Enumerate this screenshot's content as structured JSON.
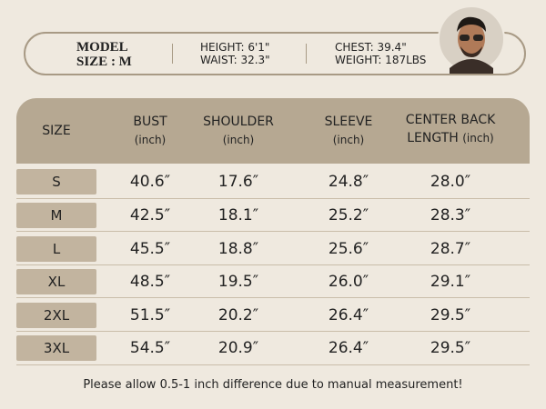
{
  "model": {
    "label": "MODEL",
    "size": "SIZE : M",
    "height": "HEIGHT: 6'1\"",
    "waist": "WAIST: 32.3\"",
    "chest": "CHEST: 39.4\"",
    "weight": "WEIGHT: 187LBS"
  },
  "table": {
    "header": [
      {
        "title": "SIZE"
      },
      {
        "title": "BUST",
        "unit": "(inch)"
      },
      {
        "title": "SHOULDER",
        "unit": "(inch)"
      },
      {
        "title": "SLEEVE",
        "unit": "(inch)"
      },
      {
        "title": "CENTER BACK LENGTH",
        "unit": "(inch)"
      }
    ],
    "rows": [
      [
        "S",
        "40.6″",
        "17.6″",
        "24.8″",
        "28.0″"
      ],
      [
        "M",
        "42.5″",
        "18.1″",
        "25.2″",
        "28.3″"
      ],
      [
        "L",
        "45.5″",
        "18.8″",
        "25.6″",
        "28.7″"
      ],
      [
        "XL",
        "48.5″",
        "19.5″",
        "26.0″",
        "29.1″"
      ],
      [
        "2XL",
        "51.5″",
        "20.2″",
        "26.4″",
        "29.5″"
      ],
      [
        "3XL",
        "54.5″",
        "20.9″",
        "26.4″",
        "29.5″"
      ]
    ]
  },
  "footer": "Please allow 0.5-1 inch difference due to manual measurement!"
}
